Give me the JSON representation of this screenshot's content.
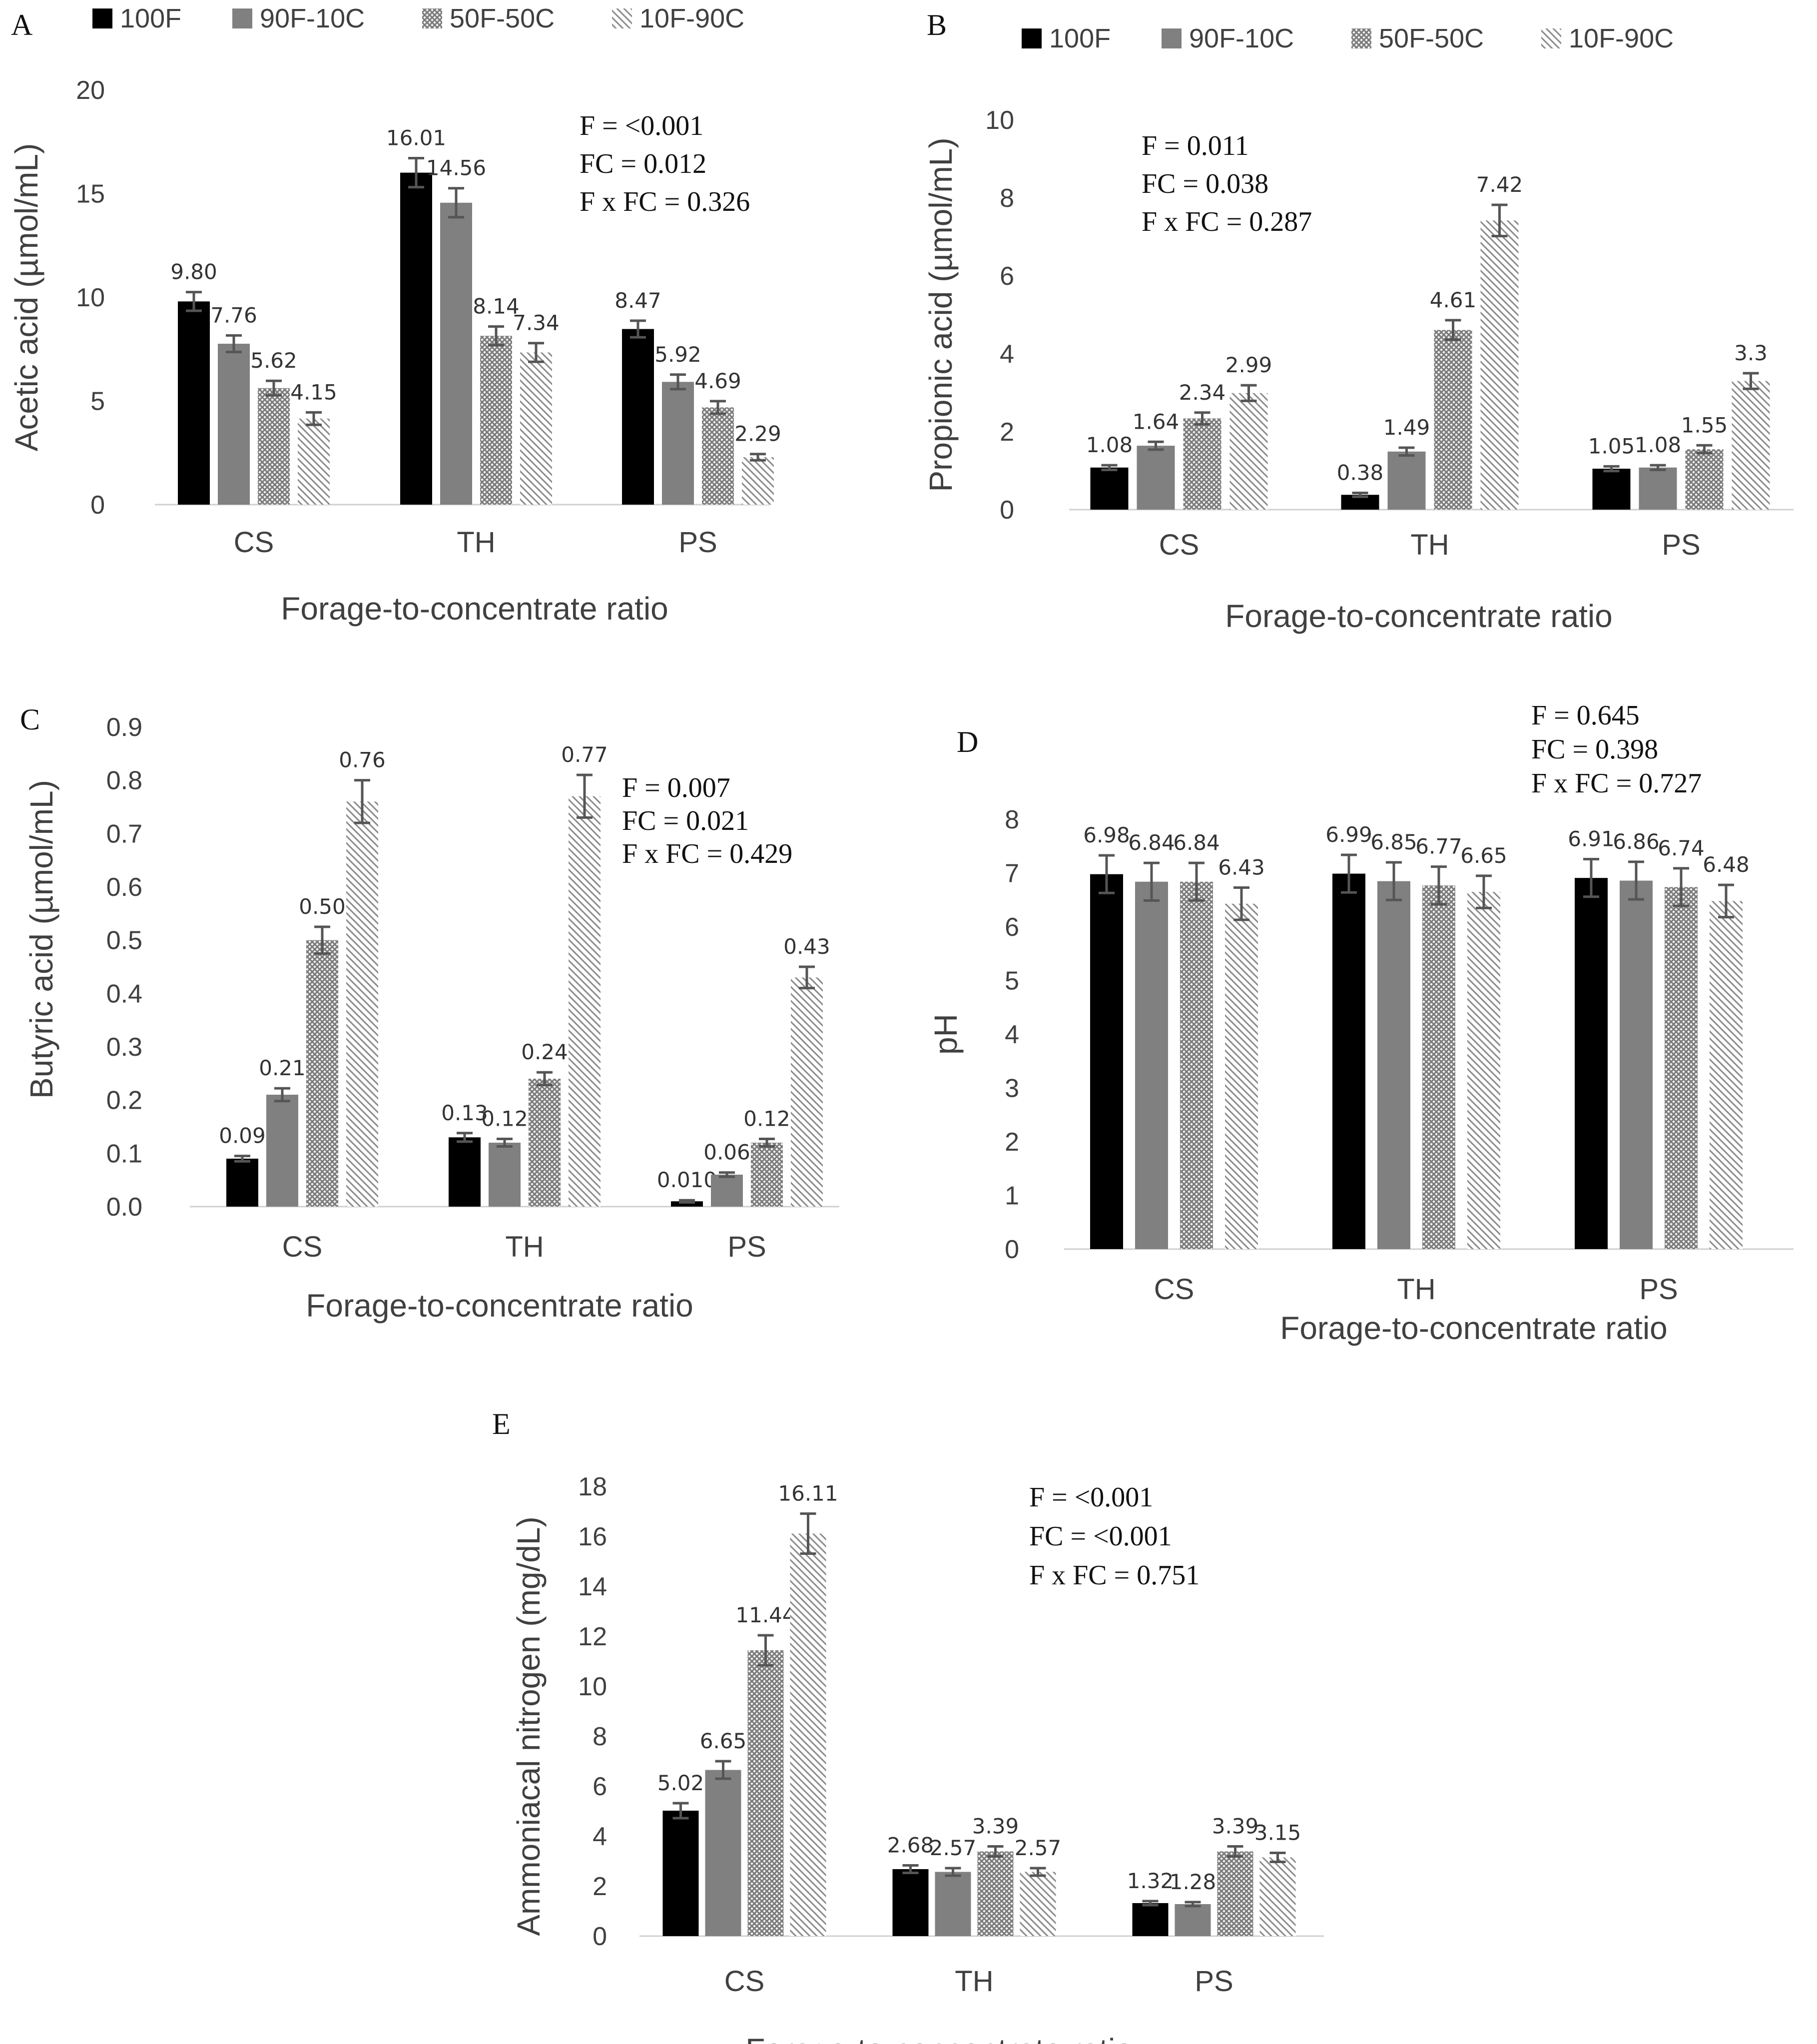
{
  "legend": {
    "items": [
      {
        "label": "100F",
        "pattern": "solid-black"
      },
      {
        "label": "90F-10C",
        "pattern": "solid-gray"
      },
      {
        "label": "50F-50C",
        "pattern": "crosshatch"
      },
      {
        "label": "10F-90C",
        "pattern": "diagonal"
      }
    ]
  },
  "colors": {
    "c100F": "#000000",
    "c90F": "#808080",
    "hatch": "#7a7a7a",
    "errbar": "#555555",
    "axis": "#d0d0d0"
  },
  "chart_data": [
    {
      "panel": "A",
      "type": "bar",
      "title": "",
      "xlabel": "Forage-to-concentrate ratio",
      "ylabel": "Acetic acid (µmol/mL)",
      "categories": [
        "CS",
        "TH",
        "PS"
      ],
      "ylim": [
        0,
        20
      ],
      "yticks": [
        0,
        5,
        10,
        15,
        20
      ],
      "series": [
        {
          "name": "100F",
          "values": [
            9.8,
            16.01,
            8.47
          ],
          "labels": [
            "9.80",
            "16.01",
            "8.47"
          ],
          "errors": [
            0.45,
            0.7,
            0.4
          ]
        },
        {
          "name": "90F-10C",
          "values": [
            7.76,
            14.56,
            5.92
          ],
          "labels": [
            "7.76",
            "14.56",
            "5.92"
          ],
          "errors": [
            0.4,
            0.7,
            0.35
          ]
        },
        {
          "name": "50F-50C",
          "values": [
            5.62,
            8.14,
            4.69
          ],
          "labels": [
            "5.62",
            "8.14",
            "4.69"
          ],
          "errors": [
            0.35,
            0.45,
            0.3
          ]
        },
        {
          "name": "10F-90C",
          "values": [
            4.15,
            7.34,
            2.29
          ],
          "labels": [
            "4.15",
            "7.34",
            "2.29"
          ],
          "errors": [
            0.3,
            0.45,
            0.15
          ]
        }
      ],
      "annotations": [
        "F = <0.001",
        "FC = 0.012",
        "F x FC =  0.326"
      ]
    },
    {
      "panel": "B",
      "type": "bar",
      "title": "",
      "xlabel": "Forage-to-concentrate ratio",
      "ylabel": "Propionic acid (µmol/mL)",
      "categories": [
        "CS",
        "TH",
        "PS"
      ],
      "ylim": [
        0,
        10
      ],
      "yticks": [
        0,
        2,
        4,
        6,
        8,
        10
      ],
      "series": [
        {
          "name": "100F",
          "values": [
            1.08,
            0.38,
            1.05
          ],
          "labels": [
            "1.08",
            "0.38",
            "1.05"
          ],
          "errors": [
            0.06,
            0.05,
            0.06
          ]
        },
        {
          "name": "90F-10C",
          "values": [
            1.64,
            1.49,
            1.08
          ],
          "labels": [
            "1.64",
            "1.49",
            "1.08"
          ],
          "errors": [
            0.1,
            0.1,
            0.06
          ]
        },
        {
          "name": "50F-50C",
          "values": [
            2.34,
            4.61,
            1.55
          ],
          "labels": [
            "2.34",
            "4.61",
            "1.55"
          ],
          "errors": [
            0.15,
            0.25,
            0.1
          ]
        },
        {
          "name": "10F-90C",
          "values": [
            2.99,
            7.42,
            3.3
          ],
          "labels": [
            "2.99",
            "7.42",
            "3.3"
          ],
          "errors": [
            0.2,
            0.4,
            0.2
          ]
        }
      ],
      "annotations": [
        "F = 0.011",
        "FC = 0.038",
        "F x FC =  0.287"
      ]
    },
    {
      "panel": "C",
      "type": "bar",
      "title": "",
      "xlabel": "Forage-to-concentrate ratio",
      "ylabel": "Butyric acid (µmol/mL)",
      "categories": [
        "CS",
        "TH",
        "PS"
      ],
      "ylim": [
        0,
        0.9
      ],
      "yticks": [
        0,
        0.1,
        0.2,
        0.3,
        0.4,
        0.5,
        0.6,
        0.7,
        0.8,
        0.9
      ],
      "series": [
        {
          "name": "100F",
          "values": [
            0.09,
            0.13,
            0.01
          ],
          "labels": [
            "0.09",
            "0.13",
            "0.010"
          ],
          "errors": [
            0.005,
            0.008,
            0.002
          ]
        },
        {
          "name": "90F-10C",
          "values": [
            0.21,
            0.12,
            0.06
          ],
          "labels": [
            "0.21",
            "0.12",
            "0.06"
          ],
          "errors": [
            0.012,
            0.007,
            0.004
          ]
        },
        {
          "name": "50F-50C",
          "values": [
            0.5,
            0.24,
            0.12
          ],
          "labels": [
            "0.50",
            "0.24",
            "0.12"
          ],
          "errors": [
            0.025,
            0.012,
            0.007
          ]
        },
        {
          "name": "10F-90C",
          "values": [
            0.76,
            0.77,
            0.43
          ],
          "labels": [
            "0.76",
            "0.77",
            "0.43"
          ],
          "errors": [
            0.04,
            0.04,
            0.02
          ]
        }
      ],
      "annotations": [
        "F = 0.007",
        "FC = 0.021",
        "F x FC =  0.429"
      ]
    },
    {
      "panel": "D",
      "type": "bar",
      "title": "",
      "xlabel": "Forage-to-concentrate ratio",
      "ylabel": "pH",
      "categories": [
        "CS",
        "TH",
        "PS"
      ],
      "ylim": [
        0,
        8
      ],
      "yticks": [
        0,
        1,
        2,
        3,
        4,
        5,
        6,
        7,
        8
      ],
      "series": [
        {
          "name": "100F",
          "values": [
            6.98,
            6.99,
            6.91
          ],
          "labels": [
            "6.98",
            "6.99",
            "6.91"
          ],
          "errors": [
            0.35,
            0.35,
            0.35
          ]
        },
        {
          "name": "90F-10C",
          "values": [
            6.84,
            6.85,
            6.86
          ],
          "labels": [
            "6.84",
            "6.85",
            "6.86"
          ],
          "errors": [
            0.35,
            0.35,
            0.35
          ]
        },
        {
          "name": "50F-50C",
          "values": [
            6.84,
            6.77,
            6.74
          ],
          "labels": [
            "6.84",
            "6.77",
            "6.74"
          ],
          "errors": [
            0.35,
            0.35,
            0.35
          ]
        },
        {
          "name": "10F-90C",
          "values": [
            6.43,
            6.65,
            6.48
          ],
          "labels": [
            "6.43",
            "6.65",
            "6.48"
          ],
          "errors": [
            0.3,
            0.3,
            0.3
          ]
        }
      ],
      "annotations": [
        "F = 0.645",
        "FC = 0.398",
        "F x FC =  0.727"
      ]
    },
    {
      "panel": "E",
      "type": "bar",
      "title": "",
      "xlabel": "Forage-to-concentrate ratio",
      "ylabel": "Ammoniacal nitrogen (mg/dL)",
      "categories": [
        "CS",
        "TH",
        "PS"
      ],
      "ylim": [
        0,
        18
      ],
      "yticks": [
        0,
        2,
        4,
        6,
        8,
        10,
        12,
        14,
        16,
        18
      ],
      "series": [
        {
          "name": "100F",
          "values": [
            5.02,
            2.68,
            1.32
          ],
          "labels": [
            "5.02",
            "2.68",
            "1.32"
          ],
          "errors": [
            0.3,
            0.15,
            0.08
          ]
        },
        {
          "name": "90F-10C",
          "values": [
            6.65,
            2.57,
            1.28
          ],
          "labels": [
            "6.65",
            "2.57",
            "1.28"
          ],
          "errors": [
            0.35,
            0.15,
            0.08
          ]
        },
        {
          "name": "50F-50C",
          "values": [
            11.44,
            3.39,
            3.39
          ],
          "labels": [
            "11.44",
            "3.39",
            "3.39"
          ],
          "errors": [
            0.6,
            0.2,
            0.2
          ]
        },
        {
          "name": "10F-90C",
          "values": [
            16.11,
            2.57,
            3.15
          ],
          "labels": [
            "16.11",
            "2.57",
            "3.15"
          ],
          "errors": [
            0.8,
            0.15,
            0.18
          ]
        }
      ],
      "annotations": [
        "F = <0.001",
        "FC = <0.001",
        "F x FC =  0.751"
      ]
    }
  ]
}
